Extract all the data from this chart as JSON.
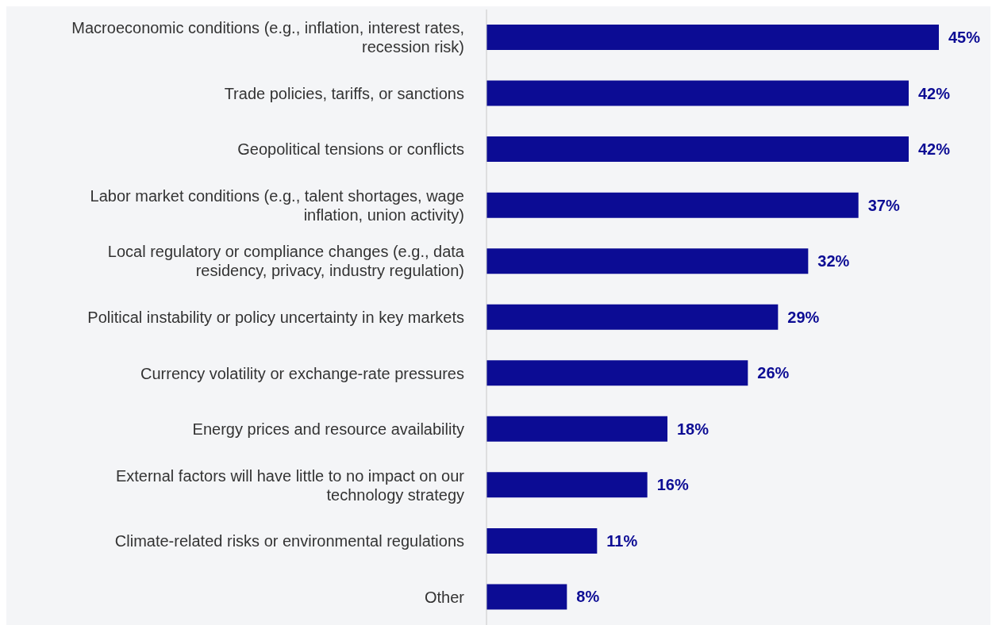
{
  "chart_data": {
    "type": "bar",
    "orientation": "horizontal",
    "color": "#0c0c94",
    "categories": [
      "Macroeconomic conditions (e.g., inflation, interest rates, recession risk)",
      "Trade policies, tariffs, or sanctions",
      "Geopolitical tensions or conflicts",
      "Labor market conditions (e.g., talent shortages, wage inflation, union activity)",
      "Local regulatory or compliance changes (e.g., data residency, privacy, industry regulation)",
      "Political instability or policy uncertainty in key markets",
      "Currency volatility or exchange-rate pressures",
      "Energy prices and resource availability",
      "External factors will have little to no impact on our technology strategy",
      "Climate-related risks or environmental regulations",
      "Other"
    ],
    "values": [
      45,
      42,
      42,
      37,
      32,
      29,
      26,
      18,
      16,
      11,
      8
    ],
    "value_labels": [
      "45%",
      "42%",
      "42%",
      "37%",
      "32%",
      "29%",
      "26%",
      "18%",
      "16%",
      "11%",
      "8%"
    ]
  }
}
